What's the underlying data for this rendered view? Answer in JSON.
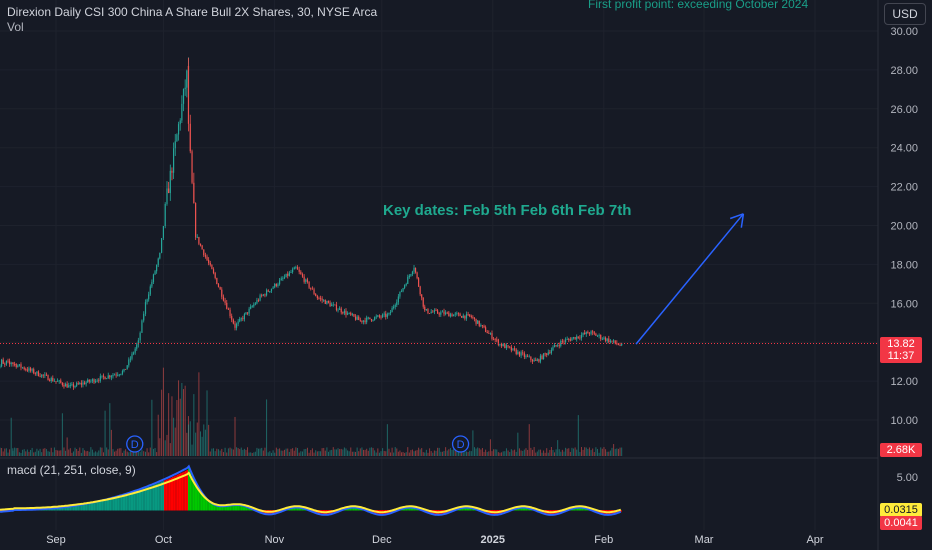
{
  "header": {
    "title": "Direxion Daily CSI 300 China A Share Bull 2X Shares, 30, NYSE Arca",
    "volume_label": "Vol",
    "currency": "USD"
  },
  "annotations": {
    "top_note": "First profit point: exceeding October 2024",
    "key_dates": "Key dates:  Feb 5th Feb 6th Feb 7th",
    "dividend_marker": "D"
  },
  "price_scale": {
    "current_price": "13.82",
    "countdown": "11:37",
    "volume_value": "2.68K",
    "macd_value": "0.0315",
    "signal_value": "0.0041"
  },
  "macd_panel": {
    "label": "macd (21, 251, close, 9)"
  },
  "colors": {
    "background": "#161a25",
    "up": "#26a69a",
    "down": "#ef5350",
    "macd_line": "#2962ff",
    "signal_line": "#ffeb3b",
    "arrow": "#2962ff",
    "annotation_text": "#1fa98f",
    "price_tag": "#f23645"
  },
  "chart_data": [
    {
      "type": "candlestick",
      "title": "Direxion Daily CSI 300 China A Share Bull 2X Shares, 30, NYSE Arca",
      "y_ticks": [
        "10.00",
        "12.00",
        "14.00",
        "16.00",
        "18.00",
        "20.00",
        "22.00",
        "24.00",
        "26.00",
        "28.00",
        "30.00"
      ],
      "x_ticks": [
        "Sep",
        "Oct",
        "Nov",
        "Dec",
        "2025",
        "Feb",
        "Mar",
        "Apr"
      ],
      "ylim": [
        8.7,
        30.2
      ],
      "current_price": 13.82,
      "key_points": [
        {
          "date": "2024-08-20",
          "price": 12.9
        },
        {
          "date": "2024-09-05",
          "price": 11.7
        },
        {
          "date": "2024-09-20",
          "price": 12.5
        },
        {
          "date": "2024-09-24",
          "price": 14.0
        },
        {
          "date": "2024-09-26",
          "price": 16.0
        },
        {
          "date": "2024-09-30",
          "price": 18.5
        },
        {
          "date": "2024-10-02",
          "price": 21.5
        },
        {
          "date": "2024-10-08",
          "price": 28.2
        },
        {
          "date": "2024-10-08",
          "price": 24.9
        },
        {
          "date": "2024-10-09",
          "price": 22.0
        },
        {
          "date": "2024-10-10",
          "price": 19.5
        },
        {
          "date": "2024-10-15",
          "price": 17.5
        },
        {
          "date": "2024-10-21",
          "price": 14.8
        },
        {
          "date": "2024-10-28",
          "price": 16.3
        },
        {
          "date": "2024-11-07",
          "price": 17.8
        },
        {
          "date": "2024-11-13",
          "price": 16.3
        },
        {
          "date": "2024-11-25",
          "price": 15.1
        },
        {
          "date": "2024-12-03",
          "price": 15.4
        },
        {
          "date": "2024-12-10",
          "price": 17.9
        },
        {
          "date": "2024-12-13",
          "price": 15.6
        },
        {
          "date": "2024-12-26",
          "price": 15.3
        },
        {
          "date": "2025-01-03",
          "price": 13.9
        },
        {
          "date": "2025-01-13",
          "price": 13.0
        },
        {
          "date": "2025-01-20",
          "price": 14.0
        },
        {
          "date": "2025-01-28",
          "price": 14.5
        },
        {
          "date": "2025-02-06",
          "price": 13.82
        }
      ],
      "arrow": {
        "from": {
          "date": "2025-02-10",
          "price": 13.9
        },
        "to": {
          "date": "2025-03-12",
          "price": 20.6
        }
      }
    },
    {
      "type": "bar",
      "title": "Vol",
      "last_value": "2.68K"
    },
    {
      "type": "line",
      "title": "macd (21, 251, close, 9)",
      "y_ticks": [
        "5.00"
      ],
      "series": [
        {
          "name": "macd",
          "last_value": 0.0315
        },
        {
          "name": "signal",
          "last_value": 0.0041
        }
      ],
      "peak": {
        "date": "2024-10-08",
        "value": 7.0
      }
    }
  ]
}
